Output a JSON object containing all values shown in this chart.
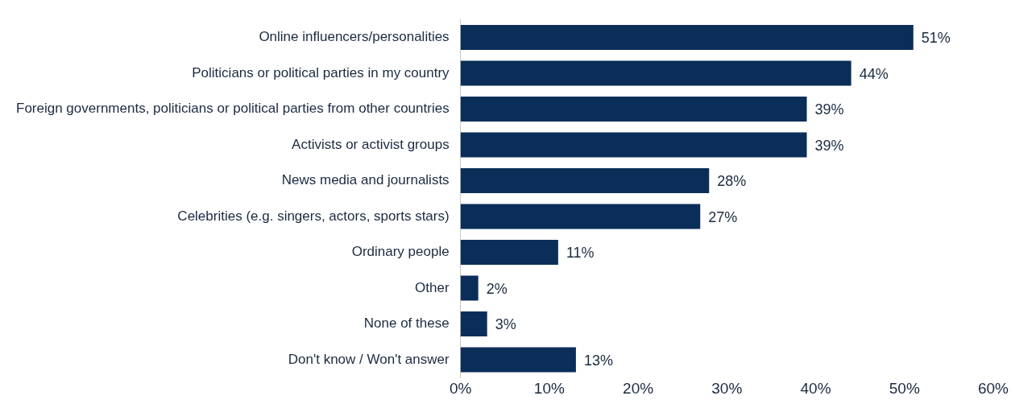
{
  "chart_data": {
    "type": "bar",
    "orientation": "horizontal",
    "categories": [
      "Online influencers/personalities",
      "Politicians or political parties in my country",
      "Foreign governments, politicians or political parties from other countries",
      "Activists or activist groups",
      "News media and journalists",
      "Celebrities (e.g. singers, actors, sports stars)",
      "Ordinary people",
      "Other",
      "None of these",
      "Don't know / Won't answer"
    ],
    "values": [
      51,
      44,
      39,
      39,
      28,
      27,
      11,
      2,
      3,
      13
    ],
    "value_labels": [
      "51%",
      "44%",
      "39%",
      "39%",
      "28%",
      "27%",
      "11%",
      "2%",
      "3%",
      "13%"
    ],
    "color": "#0b2e59",
    "xlim": [
      0,
      60
    ],
    "xticks": [
      {
        "value": 0,
        "label": "0%"
      },
      {
        "value": 10,
        "label": "10%"
      },
      {
        "value": 20,
        "label": "20%"
      },
      {
        "value": 30,
        "label": "30%"
      },
      {
        "value": 40,
        "label": "40%"
      },
      {
        "value": 50,
        "label": "50%"
      },
      {
        "value": 60,
        "label": "60%"
      }
    ],
    "grid": false,
    "legend": false
  }
}
